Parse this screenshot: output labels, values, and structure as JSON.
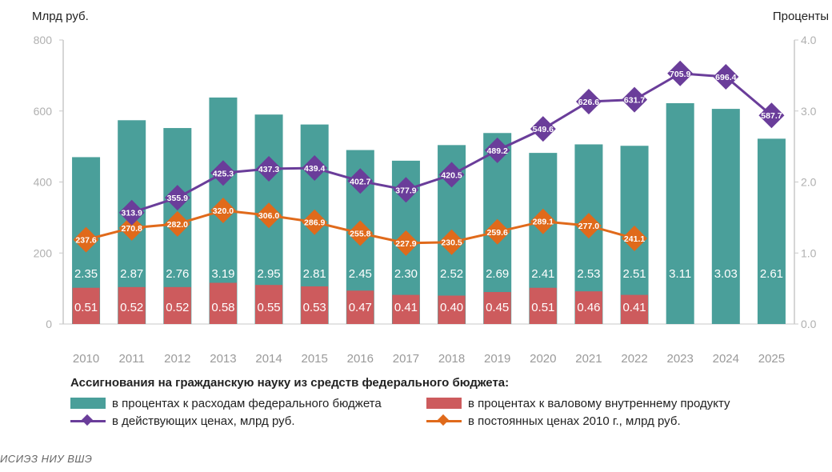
{
  "chart_data": {
    "type": "bar+line",
    "left_axis_title": "Млрд руб.",
    "right_axis_title": "Проценты",
    "left_ylim": [
      0,
      800
    ],
    "left_ticks": [
      "0",
      "200",
      "400",
      "600",
      "800"
    ],
    "right_ylim": [
      0,
      4
    ],
    "right_ticks": [
      "0.0",
      "1.0",
      "2.0",
      "3.0",
      "4.0"
    ],
    "categories": [
      "2010",
      "2011",
      "2012",
      "2013",
      "2014",
      "2015",
      "2016",
      "2017",
      "2018",
      "2019",
      "2020",
      "2021",
      "2022",
      "2023",
      "2024",
      "2025"
    ],
    "series": [
      {
        "name": "в процентах к расходам федерального бюджета",
        "kind": "bar",
        "axis": "right",
        "color": "#4a9f9a",
        "values": [
          2.35,
          2.87,
          2.76,
          3.19,
          2.95,
          2.81,
          2.45,
          2.3,
          2.52,
          2.69,
          2.41,
          2.53,
          2.51,
          3.11,
          3.03,
          2.61
        ],
        "labels": [
          "2.35",
          "2.87",
          "2.76",
          "3.19",
          "2.95",
          "2.81",
          "2.45",
          "2.30",
          "2.52",
          "2.69",
          "2.41",
          "2.53",
          "2.51",
          "3.11",
          "3.03",
          "2.61"
        ]
      },
      {
        "name": "в процентах к валовому внутреннему продукту",
        "kind": "bar",
        "axis": "right",
        "color": "#cd5b5d",
        "values": [
          0.51,
          0.52,
          0.52,
          0.58,
          0.55,
          0.53,
          0.47,
          0.41,
          0.4,
          0.45,
          0.51,
          0.46,
          0.41,
          null,
          null,
          null
        ],
        "labels": [
          "0.51",
          "0.52",
          "0.52",
          "0.58",
          "0.55",
          "0.53",
          "0.47",
          "0.41",
          "0.40",
          "0.45",
          "0.51",
          "0.46",
          "0.41",
          null,
          null,
          null
        ]
      },
      {
        "name": "в действующих ценах, млрд руб.",
        "kind": "line",
        "axis": "left",
        "color": "#6a3d9a",
        "values": [
          null,
          313.9,
          355.9,
          425.3,
          437.3,
          439.4,
          402.7,
          377.9,
          420.5,
          489.2,
          549.6,
          626.6,
          631.7,
          705.9,
          696.4,
          587.7
        ],
        "labels": [
          null,
          "313.9",
          "355.9",
          "425.3",
          "437.3",
          "439.4",
          "402.7",
          "377.9",
          "420.5",
          "489.2",
          "549.6",
          "626.6",
          "631.7",
          "705.9",
          "696.4",
          "587.7"
        ]
      },
      {
        "name": "в постоянных ценах 2010 г., млрд руб.",
        "kind": "line",
        "axis": "left",
        "color": "#e06a1b",
        "values": [
          237.6,
          270.8,
          282.0,
          320.0,
          306.0,
          286.9,
          255.8,
          227.9,
          230.5,
          259.6,
          289.1,
          277.0,
          241.1,
          null,
          null,
          null
        ],
        "labels": [
          "237.6",
          "270.8",
          "282.0",
          "320.0",
          "306.0",
          "286.9",
          "255.8",
          "227.9",
          "230.5",
          "259.6",
          "289.1",
          "277.0",
          "241.1",
          null,
          null,
          null
        ]
      }
    ]
  },
  "legend": {
    "title": "Ассигнования на гражданскую науку из средств федерального бюджета:",
    "items": [
      "в процентах к расходам федерального бюджета",
      "в процентах к валовому внутреннему продукту",
      "в действующих ценах, млрд руб.",
      "в постоянных ценах 2010 г., млрд руб."
    ]
  },
  "source": "ИСИЭЗ НИУ ВШЭ"
}
